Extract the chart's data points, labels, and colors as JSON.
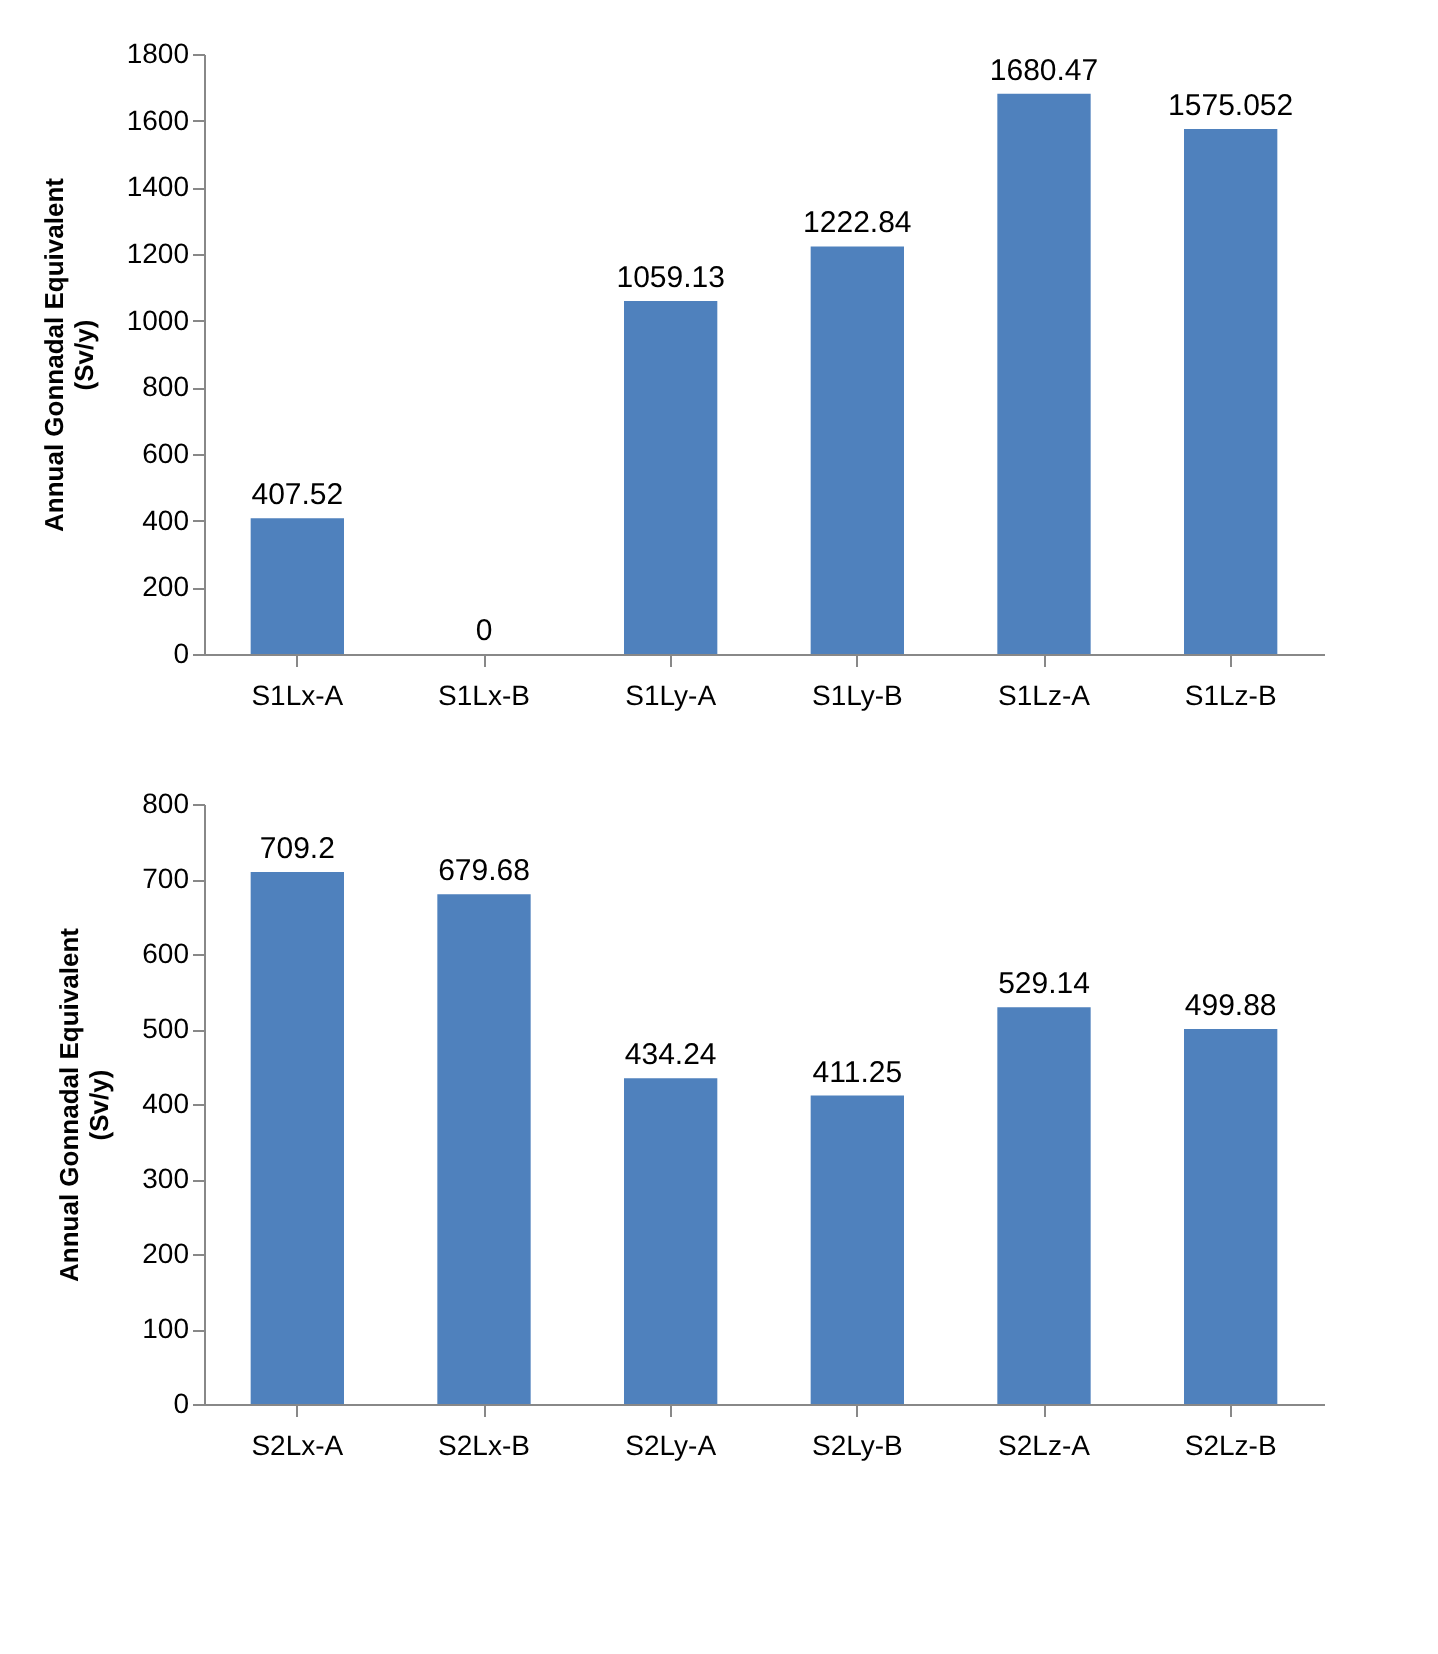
{
  "chart_data": [
    {
      "type": "bar",
      "ylabel": "Annual Gonnadal  Equivalent\n(Sv/y)",
      "categories": [
        "S1Lx-A",
        "S1Lx-B",
        "S1Ly-A",
        "S1Ly-B",
        "S1Lz-A",
        "S1Lz-B"
      ],
      "values": [
        407.52,
        0,
        1059.13,
        1222.84,
        1680.47,
        1575.052
      ],
      "color": "#4f81bd",
      "ylim": [
        0,
        1800
      ],
      "yticks": [
        0,
        200,
        400,
        600,
        800,
        1000,
        1200,
        1400,
        1600,
        1800
      ],
      "grid": false,
      "data_labels": true
    },
    {
      "type": "bar",
      "ylabel": "Annual Gonnadal  Equivalent\n(Sv/y)",
      "categories": [
        "S2Lx-A",
        "S2Lx-B",
        "S2Ly-A",
        "S2Ly-B",
        "S2Lz-A",
        "S2Lz-B"
      ],
      "values": [
        709.2,
        679.68,
        434.24,
        411.25,
        529.14,
        499.88
      ],
      "color": "#4f81bd",
      "ylim": [
        0,
        800
      ],
      "yticks": [
        0,
        100,
        200,
        300,
        400,
        500,
        600,
        700,
        800
      ],
      "grid": false,
      "data_labels": true
    }
  ]
}
